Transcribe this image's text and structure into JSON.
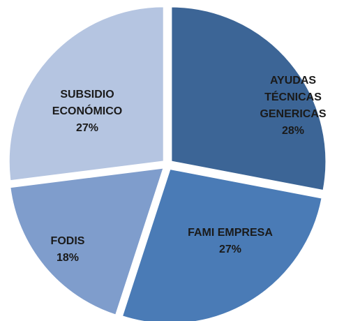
{
  "chart_data": {
    "type": "pie",
    "categories": [
      "AYUDAS TÉCNICAS GENERICAS",
      "FAMI EMPRESA",
      "FODIS",
      "SUBSIDIO ECONÓMICO"
    ],
    "values": [
      28,
      27,
      18,
      27
    ],
    "value_labels": [
      "28%",
      "27%",
      "18%",
      "27%"
    ],
    "colors": [
      "#3c6596",
      "#4a7bb6",
      "#7f9dcc",
      "#b5c5e1"
    ]
  }
}
